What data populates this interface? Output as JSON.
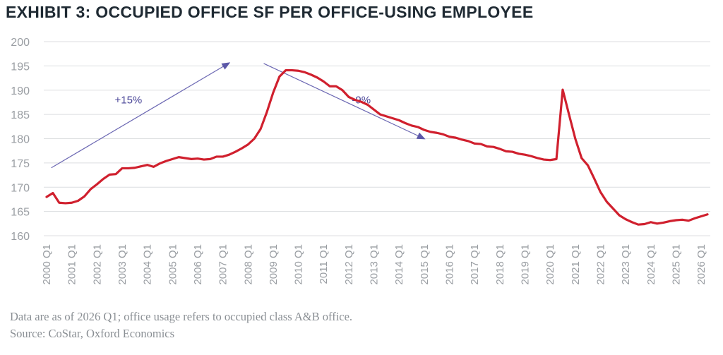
{
  "title": "EXHIBIT 3: OCCUPIED OFFICE SF PER OFFICE-USING EMPLOYEE",
  "footnote": "Data are as of 2026 Q1; office usage refers to occupied class A&B office.",
  "source": "Source: CoStar, Oxford Economics",
  "chart_data": {
    "type": "line",
    "title": "EXHIBIT 3: OCCUPIED OFFICE SF PER OFFICE-USING EMPLOYEE",
    "xlabel": "",
    "ylabel": "",
    "ylim": [
      160,
      200
    ],
    "yticks": [
      160,
      165,
      170,
      175,
      180,
      185,
      190,
      195,
      200
    ],
    "grid": true,
    "legend": "none",
    "x_start": "2000 Q1",
    "x_tick_labels": [
      "2000 Q1",
      "2001 Q1",
      "2002 Q1",
      "2003 Q1",
      "2004 Q1",
      "2005 Q1",
      "2006 Q1",
      "2007 Q1",
      "2008 Q1",
      "2009 Q1",
      "2010 Q1",
      "2011 Q1",
      "2012 Q1",
      "2013 Q1",
      "2014 Q1",
      "2015 Q1",
      "2016 Q1",
      "2017 Q1",
      "2018 Q1",
      "2019 Q1",
      "2020 Q1",
      "2021 Q1",
      "2022 Q1",
      "2023 Q1",
      "2024 Q1",
      "2025 Q1",
      "2026 Q1"
    ],
    "series": [
      {
        "color": "#d0202e",
        "values": [
          168.0,
          168.8,
          166.8,
          166.7,
          166.8,
          167.2,
          168.1,
          169.6,
          170.6,
          171.7,
          172.6,
          172.7,
          173.9,
          173.9,
          174.0,
          174.3,
          174.6,
          174.2,
          174.9,
          175.4,
          175.8,
          176.2,
          176.0,
          175.8,
          175.9,
          175.7,
          175.8,
          176.3,
          176.3,
          176.7,
          177.3,
          178.0,
          178.8,
          180.0,
          182.0,
          185.5,
          189.5,
          192.8,
          194.1,
          194.1,
          194.0,
          193.7,
          193.2,
          192.6,
          191.8,
          190.8,
          190.8,
          190.0,
          188.6,
          188.0,
          187.6,
          187.0,
          186.0,
          185.0,
          184.6,
          184.2,
          183.8,
          183.2,
          182.7,
          182.4,
          181.8,
          181.4,
          181.2,
          180.9,
          180.4,
          180.2,
          179.8,
          179.5,
          179.0,
          178.9,
          178.4,
          178.3,
          177.9,
          177.4,
          177.3,
          176.9,
          176.7,
          176.4,
          176.0,
          175.7,
          175.6,
          175.8,
          190.1,
          185.0,
          180.0,
          176.0,
          174.5,
          171.8,
          169.0,
          167.0,
          165.6,
          164.2,
          163.4,
          162.8,
          162.3,
          162.4,
          162.8,
          162.5,
          162.7,
          163.0,
          163.2,
          163.3,
          163.1,
          163.6,
          164.0,
          164.4
        ]
      }
    ],
    "annotations": [
      {
        "text": "+15%",
        "from": {
          "x": 0.75,
          "y": 174.0
        },
        "to": {
          "x": 29.0,
          "y": 195.6
        },
        "label_at": {
          "x": 13.0,
          "y": 187.3
        }
      },
      {
        "text": "-9%",
        "from": {
          "x": 34.5,
          "y": 195.5
        },
        "to": {
          "x": 60.0,
          "y": 180.0
        },
        "label_at": {
          "x": 50.0,
          "y": 187.3
        }
      }
    ]
  }
}
